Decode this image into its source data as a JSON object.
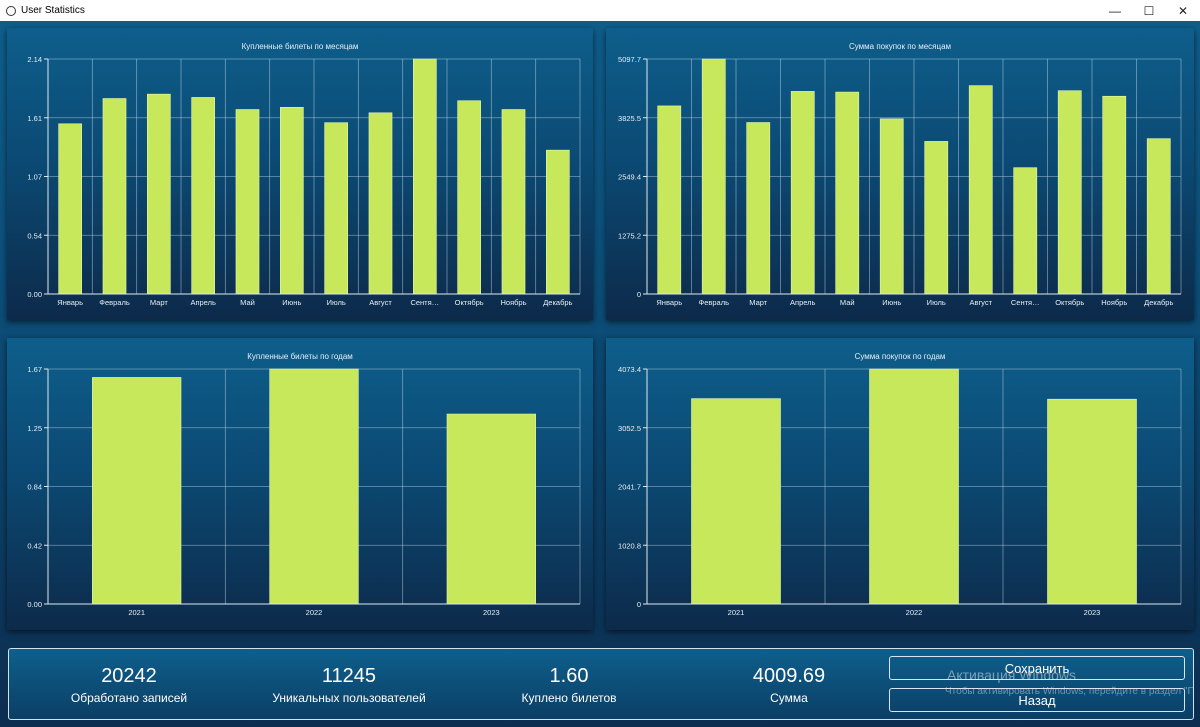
{
  "window": {
    "title": "User Statistics",
    "minimize": "—",
    "maximize": "☐",
    "close": "✕"
  },
  "charts": [
    {
      "type": "bar",
      "title": "Купленные билеты по месяцам",
      "categories": [
        "Январь",
        "Февраль",
        "Март",
        "Апрель",
        "Май",
        "Июнь",
        "Июль",
        "Август",
        "Сентя…",
        "Октябрь",
        "Ноябрь",
        "Декабрь"
      ],
      "values": [
        1.55,
        1.78,
        1.82,
        1.79,
        1.68,
        1.7,
        1.56,
        1.65,
        2.14,
        1.76,
        1.68,
        1.31
      ],
      "yticks": [
        "0.00",
        "0.54",
        "1.07",
        "1.61",
        "2.14"
      ],
      "ylim": [
        0,
        2.14
      ]
    },
    {
      "type": "bar",
      "title": "Сумма покупок по месяцам",
      "categories": [
        "Январь",
        "Февраль",
        "Март",
        "Апрель",
        "Май",
        "Июнь",
        "Июль",
        "Август",
        "Сентя…",
        "Октябрь",
        "Ноябрь",
        "Декабрь"
      ],
      "values": [
        4080,
        5097,
        3720,
        4395,
        4380,
        3800,
        3310,
        4520,
        2740,
        4410,
        4290,
        3370
      ],
      "yticks": [
        "0",
        "1275.2",
        "2549.4",
        "3825.5",
        "5097.7"
      ],
      "ylim": [
        0,
        5097.7
      ]
    },
    {
      "type": "bar",
      "title": "Купленные билеты по годам",
      "categories": [
        "2021",
        "2022",
        "2023"
      ],
      "values": [
        1.61,
        1.67,
        1.35
      ],
      "yticks": [
        "0.00",
        "0.42",
        "0.84",
        "1.25",
        "1.67"
      ],
      "ylim": [
        0,
        1.67
      ]
    },
    {
      "type": "bar",
      "title": "Сумма покупок по годам",
      "categories": [
        "2021",
        "2022",
        "2023"
      ],
      "values": [
        3560,
        4073,
        3550
      ],
      "yticks": [
        "0",
        "1020.8",
        "2041.7",
        "3052.5",
        "4073.4"
      ],
      "ylim": [
        0,
        4073.4
      ]
    }
  ],
  "summary": {
    "records_value": "20242",
    "records_label": "Обработано записей",
    "users_value": "11245",
    "users_label": "Уникальных пользователей",
    "tickets_value": "1.60",
    "tickets_label": "Куплено билетов",
    "sum_value": "4009.69",
    "sum_label": "Сумма",
    "save_label": "Сохранить",
    "back_label": "Назад"
  },
  "watermark": {
    "title": "Активация Windows",
    "subtitle": "Чтобы активировать Windows, перейдите в раздел \"Параметры\"."
  },
  "colors": {
    "bar": "#c6e85a",
    "accent": "#0e5e8b"
  }
}
